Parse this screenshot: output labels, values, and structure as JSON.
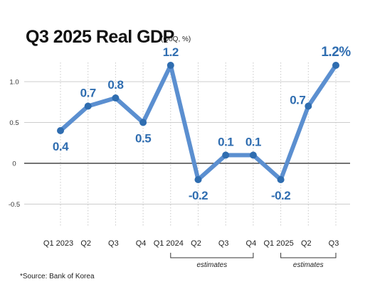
{
  "chart_data": {
    "type": "line",
    "title": "Q3 2025 Real GDP",
    "subtitle": "(QoQ, %)",
    "categories": [
      "Q1 2023",
      "Q2",
      "Q3",
      "Q4",
      "Q1 2024",
      "Q2",
      "Q3",
      "Q4",
      "Q1 2025",
      "Q2",
      "Q3"
    ],
    "series": [
      {
        "values": [
          0.4,
          0.7,
          0.8,
          0.5,
          1.2,
          -0.2,
          0.1,
          0.1,
          -0.2,
          0.7,
          1.2
        ]
      }
    ],
    "data_labels": [
      "0.4",
      "0.7",
      "0.8",
      "0.5",
      "1.2",
      "-0.2",
      "0.1",
      "0.1",
      "-0.2",
      "0.7",
      "1.2%"
    ],
    "y_ticks": [
      "1.0",
      "0.5",
      "0",
      "-0.5"
    ],
    "ylim": [
      -0.85,
      1.3
    ],
    "grid": true,
    "line_color": "#5b8fd0",
    "marker_color": "#2f6db0",
    "label_color": "#2f6db0",
    "annotations": [
      {
        "text": "estimates",
        "from_index": 4,
        "to_index": 7
      },
      {
        "text": "estimates",
        "from_index": 8,
        "to_index": 10
      }
    ],
    "source": "*Source: Bank of Korea"
  }
}
